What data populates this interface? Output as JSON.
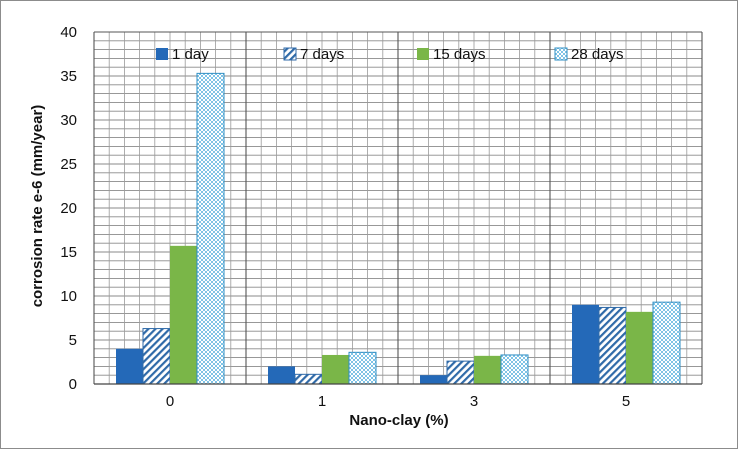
{
  "chart_data": {
    "type": "bar",
    "title": "",
    "xlabel": "Nano-clay (%)",
    "ylabel": "corrosion rate e-6 (mm/year)",
    "categories": [
      "0",
      "1",
      "3",
      "5"
    ],
    "ylim": [
      0,
      40
    ],
    "yticks": [
      0,
      5,
      10,
      15,
      20,
      25,
      30,
      35,
      40
    ],
    "series": [
      {
        "name": "1 day",
        "values": [
          4.0,
          2.0,
          1.0,
          9.0
        ],
        "color": "#2469b8",
        "pattern": "solid"
      },
      {
        "name": "7 days",
        "values": [
          6.3,
          1.1,
          2.6,
          8.7
        ],
        "color": "#2f6aa8",
        "pattern": "diagonal"
      },
      {
        "name": "15 days",
        "values": [
          15.7,
          3.3,
          3.2,
          8.2
        ],
        "color": "#7ab648",
        "pattern": "solid"
      },
      {
        "name": "28 days",
        "values": [
          35.3,
          3.6,
          3.3,
          9.3
        ],
        "color": "#2f8fc4",
        "pattern": "dotted"
      }
    ],
    "legend": "top"
  }
}
